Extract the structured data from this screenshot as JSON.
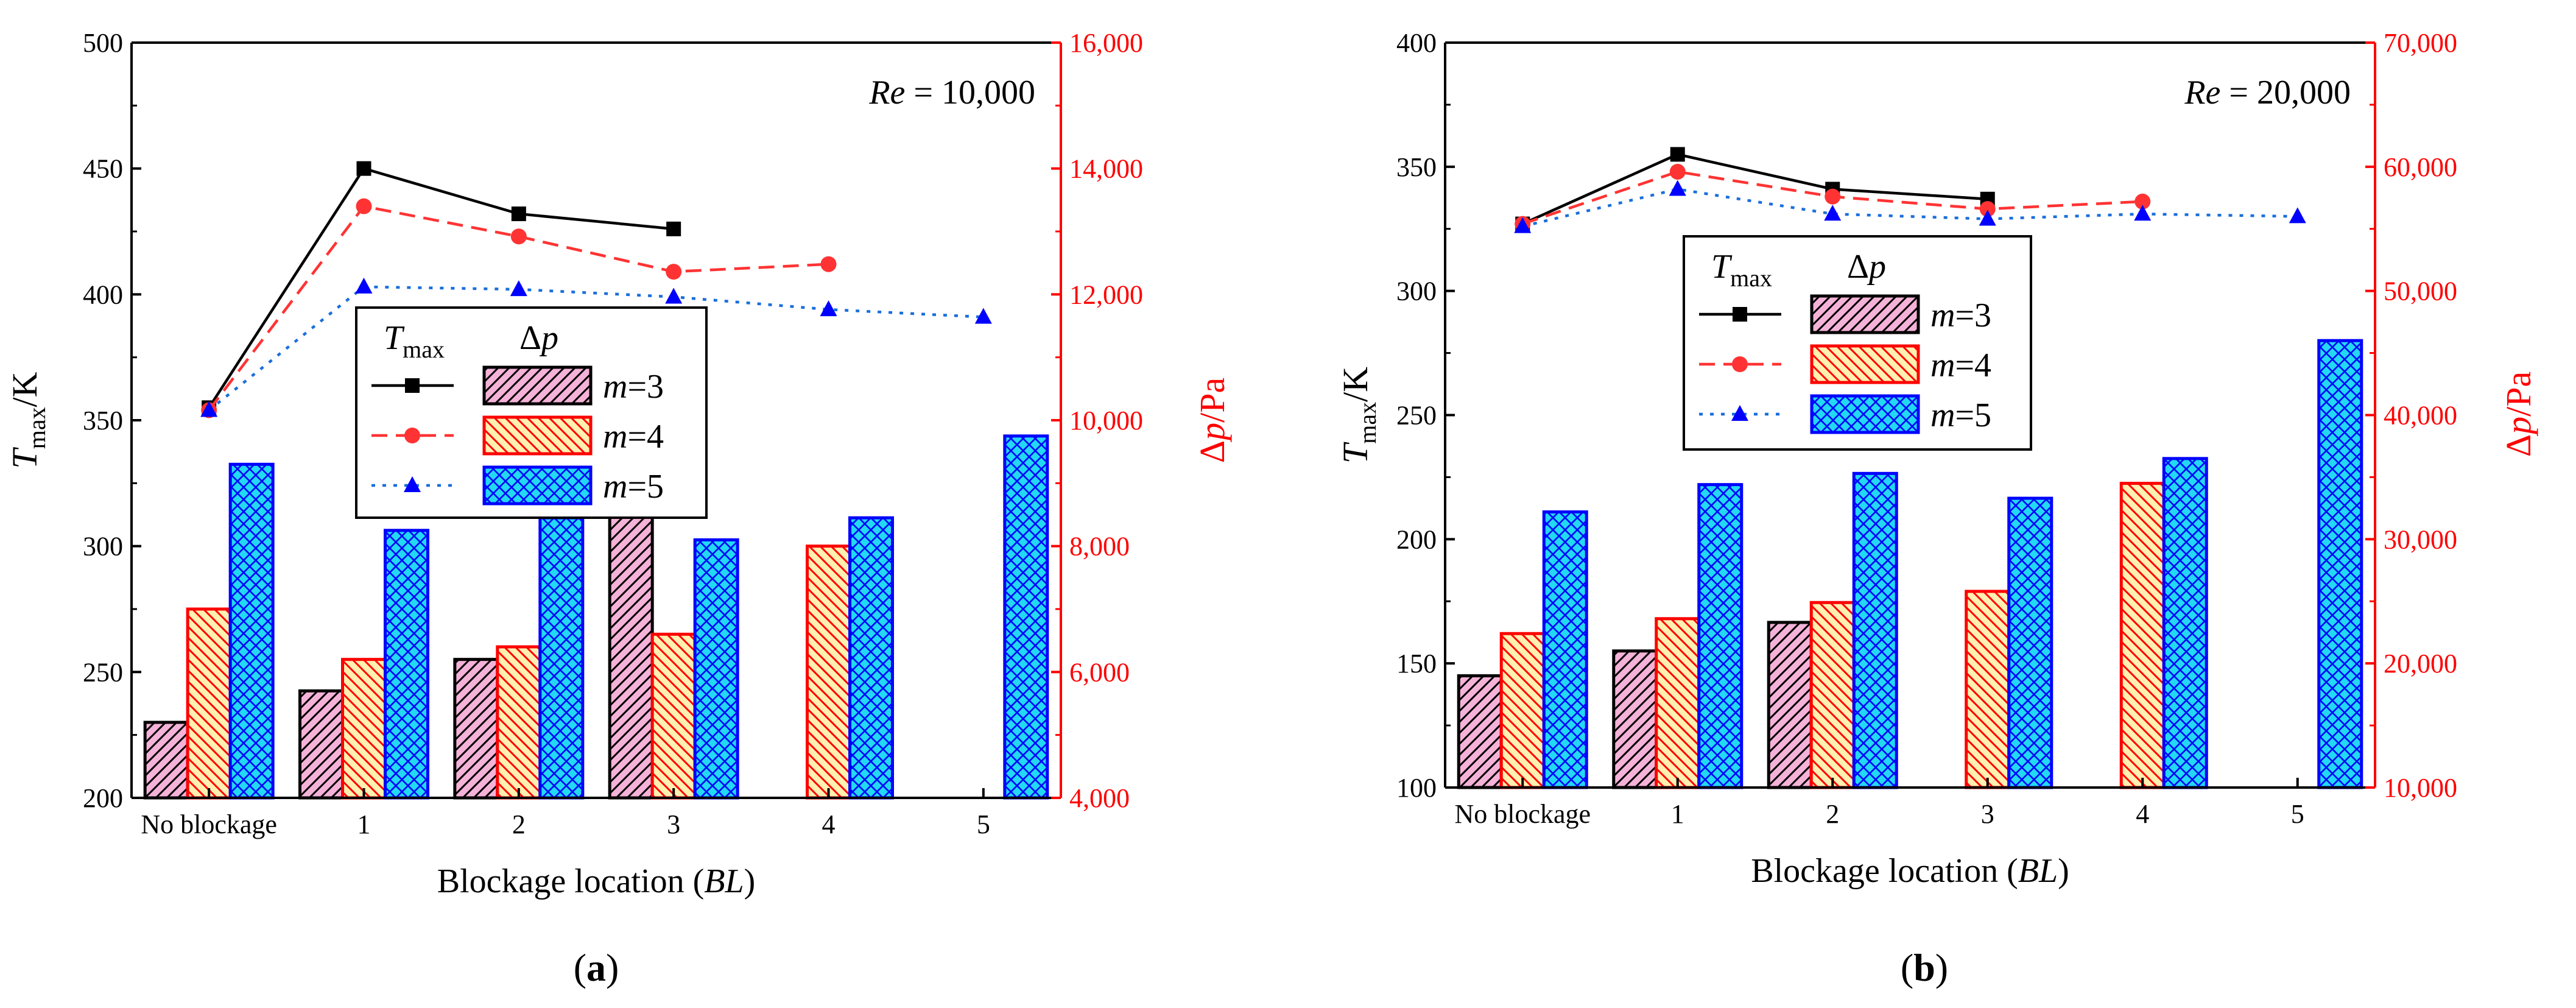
{
  "panels": [
    {
      "id": "a",
      "label": "(a)",
      "annotation": {
        "re_label": "Re",
        "re_value": " = 10,000"
      },
      "chart_data": {
        "type": "bar+line",
        "xlabel": "Blockage location (BL)",
        "xlabel_parts": [
          "Blockage location (",
          "BL",
          ")"
        ],
        "ylabel_left": "Tmax/K",
        "ylabel_right": "Δp/Pa",
        "categories": [
          "No blockage",
          "1",
          "2",
          "3",
          "4",
          "5"
        ],
        "left_axis": {
          "ylim": [
            200,
            500
          ],
          "ticks": [
            200,
            250,
            300,
            350,
            400,
            450,
            500
          ]
        },
        "right_axis": {
          "ylim": [
            4000,
            16000
          ],
          "ticks": [
            4000,
            6000,
            8000,
            10000,
            12000,
            14000,
            16000
          ],
          "tick_labels": [
            "4,000",
            "6,000",
            "8,000",
            "10,000",
            "12,000",
            "14,000",
            "16,000"
          ]
        },
        "line_series": [
          {
            "name": "m=3",
            "values": [
              355,
              450,
              432,
              426,
              null,
              null
            ]
          },
          {
            "name": "m=4",
            "values": [
              354,
              435,
              423,
              409,
              412,
              null
            ]
          },
          {
            "name": "m=5",
            "values": [
              354,
              403,
              402,
              399,
              394,
              391
            ]
          }
        ],
        "bar_series": [
          {
            "name": "m=3",
            "values": [
              5200,
              5700,
              6200,
              8500,
              null,
              null
            ]
          },
          {
            "name": "m=4",
            "values": [
              7000,
              6200,
              6400,
              6600,
              8000,
              null
            ]
          },
          {
            "name": "m=5",
            "values": [
              9300,
              8250,
              8450,
              8100,
              8450,
              9750
            ]
          }
        ],
        "legend": {
          "header_line": "Tmax",
          "header_bar": "Δp",
          "entries": [
            "m=3",
            "m=4",
            "m=5"
          ]
        }
      }
    },
    {
      "id": "b",
      "label": "(b)",
      "annotation": {
        "re_label": "Re",
        "re_value": " = 20,000"
      },
      "chart_data": {
        "type": "bar+line",
        "xlabel": "Blockage location (BL)",
        "xlabel_parts": [
          "Blockage location (",
          "BL",
          ")"
        ],
        "ylabel_left": "Tmax/K",
        "ylabel_right": "Δp/Pa",
        "categories": [
          "No blockage",
          "1",
          "2",
          "3",
          "4",
          "5"
        ],
        "left_axis": {
          "ylim": [
            100,
            400
          ],
          "ticks": [
            100,
            150,
            200,
            250,
            300,
            350,
            400
          ]
        },
        "right_axis": {
          "ylim": [
            10000,
            70000
          ],
          "ticks": [
            10000,
            20000,
            30000,
            40000,
            50000,
            60000,
            70000
          ],
          "tick_labels": [
            "10,000",
            "20,000",
            "30,000",
            "40,000",
            "50,000",
            "60,000",
            "70,000"
          ]
        },
        "line_series": [
          {
            "name": "m=3",
            "values": [
              327,
              355,
              341,
              337,
              null,
              null
            ]
          },
          {
            "name": "m=4",
            "values": [
              327,
              348,
              338,
              333,
              336,
              null
            ]
          },
          {
            "name": "m=5",
            "values": [
              326,
              341,
              331,
              329,
              331,
              330
            ]
          }
        ],
        "bar_series": [
          {
            "name": "m=3",
            "values": [
              19000,
              21000,
              23300,
              null,
              null,
              null
            ]
          },
          {
            "name": "m=4",
            "values": [
              22400,
              23600,
              24900,
              25800,
              34500,
              null
            ]
          },
          {
            "name": "m=5",
            "values": [
              32200,
              34400,
              35300,
              33300,
              36500,
              46000
            ]
          }
        ],
        "legend": {
          "header_line": "Tmax",
          "header_bar": "Δp",
          "entries": [
            "m=3",
            "m=4",
            "m=5"
          ]
        }
      }
    }
  ],
  "colors": {
    "axis": "#000000",
    "right_axis": "#ff0000",
    "line": [
      "#000000",
      "#ff3333",
      "#1a6fdc"
    ],
    "bar_fill": [
      "#f5b2d8",
      "#ffefb0",
      "#22d8f2"
    ],
    "bar_stroke": [
      "#000000",
      "#ff0000",
      "#0000ff"
    ],
    "marker": [
      "#000000",
      "#ff3333",
      "#0000ff"
    ]
  },
  "markers": [
    "square",
    "circle",
    "triangle"
  ],
  "hatches": [
    "diagonal-up",
    "diagonal-down",
    "crosshatch"
  ]
}
